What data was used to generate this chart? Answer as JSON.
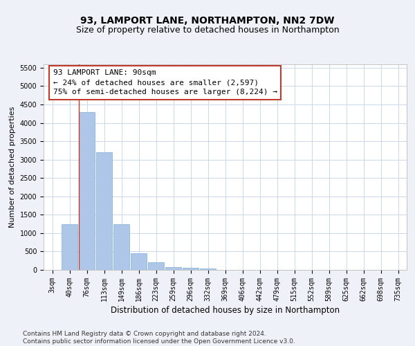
{
  "title1": "93, LAMPORT LANE, NORTHAMPTON, NN2 7DW",
  "title2": "Size of property relative to detached houses in Northampton",
  "xlabel": "Distribution of detached houses by size in Northampton",
  "ylabel": "Number of detached properties",
  "categories": [
    "3sqm",
    "40sqm",
    "76sqm",
    "113sqm",
    "149sqm",
    "186sqm",
    "223sqm",
    "259sqm",
    "296sqm",
    "332sqm",
    "369sqm",
    "406sqm",
    "442sqm",
    "479sqm",
    "515sqm",
    "552sqm",
    "589sqm",
    "625sqm",
    "662sqm",
    "698sqm",
    "735sqm"
  ],
  "values": [
    0,
    1250,
    4300,
    3200,
    1250,
    450,
    200,
    75,
    55,
    30,
    0,
    0,
    0,
    0,
    0,
    0,
    0,
    0,
    0,
    0,
    0
  ],
  "bar_color": "#aec6e8",
  "bar_edge_color": "#7aaed6",
  "vline_color": "#c0392b",
  "annotation_text": "93 LAMPORT LANE: 90sqm\n← 24% of detached houses are smaller (2,597)\n75% of semi-detached houses are larger (8,224) →",
  "annotation_box_color": "white",
  "annotation_box_edge_color": "#c0392b",
  "ylim": [
    0,
    5600
  ],
  "yticks": [
    0,
    500,
    1000,
    1500,
    2000,
    2500,
    3000,
    3500,
    4000,
    4500,
    5000,
    5500
  ],
  "footer": "Contains HM Land Registry data © Crown copyright and database right 2024.\nContains public sector information licensed under the Open Government Licence v3.0.",
  "bg_color": "#eef2f8",
  "plot_bg_color": "#ffffff",
  "grid_color": "#c8d8eb",
  "title1_fontsize": 10,
  "title2_fontsize": 9,
  "xlabel_fontsize": 8.5,
  "ylabel_fontsize": 8,
  "tick_fontsize": 7,
  "annotation_fontsize": 8,
  "footer_fontsize": 6.5
}
